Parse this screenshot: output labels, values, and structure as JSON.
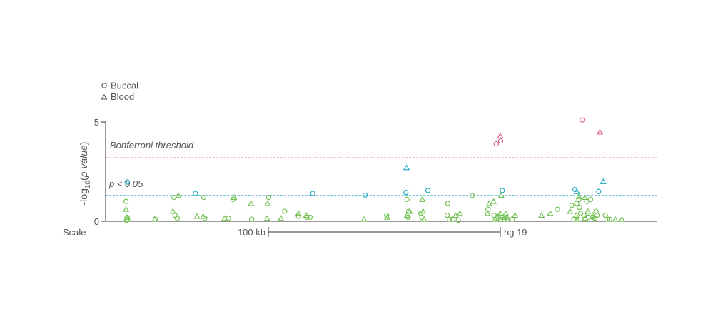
{
  "chart_data": {
    "type": "scatter",
    "title": "",
    "xlabel": "",
    "ylabel_parts": [
      "-log",
      "10",
      "(",
      "p value",
      ")"
    ],
    "ylim": [
      0,
      5
    ],
    "yticks": [
      "0",
      "5"
    ],
    "xlim": [
      0,
      100
    ],
    "grid": false,
    "legend_position": "top-left",
    "legend": [
      {
        "name": "Buccal",
        "marker": "circle"
      },
      {
        "name": "Blood",
        "marker": "triangle"
      }
    ],
    "thresholds": [
      {
        "label": "Bonferroni threshold",
        "y": 3.2,
        "color": "#d65a8c"
      },
      {
        "label_p": "p",
        "label_rest": " < 0.05",
        "y": 1.3,
        "color": "#1aa8c0"
      }
    ],
    "scale_bar": {
      "label": "Scale",
      "length_label": "100 kb",
      "genome_label": "hg 19"
    },
    "colors": {
      "green": "#6cbf4a",
      "blue": "#1aa8c0",
      "pink": "#d65a8c",
      "axis": "#333333",
      "text": "#555555"
    },
    "series": [
      {
        "name": "Buccal",
        "marker": "circle",
        "points": [
          {
            "x": 3.9,
            "y": 1.98,
            "c": "blue"
          },
          {
            "x": 3.7,
            "y": 1.0,
            "c": "green"
          },
          {
            "x": 3.9,
            "y": 0.2,
            "c": "green"
          },
          {
            "x": 4.0,
            "y": 0.1,
            "c": "green"
          },
          {
            "x": 3.8,
            "y": 0.05,
            "c": "green"
          },
          {
            "x": 9.0,
            "y": 0.1,
            "c": "green"
          },
          {
            "x": 12.4,
            "y": 1.2,
            "c": "green"
          },
          {
            "x": 12.6,
            "y": 0.3,
            "c": "green"
          },
          {
            "x": 13.0,
            "y": 0.15,
            "c": "green"
          },
          {
            "x": 16.3,
            "y": 1.4,
            "c": "blue"
          },
          {
            "x": 17.8,
            "y": 1.2,
            "c": "green"
          },
          {
            "x": 18.0,
            "y": 0.15,
            "c": "green"
          },
          {
            "x": 23.1,
            "y": 1.1,
            "c": "green"
          },
          {
            "x": 22.3,
            "y": 0.15,
            "c": "green"
          },
          {
            "x": 26.5,
            "y": 0.1,
            "c": "green"
          },
          {
            "x": 29.6,
            "y": 1.2,
            "c": "green"
          },
          {
            "x": 32.5,
            "y": 0.5,
            "c": "green"
          },
          {
            "x": 35.0,
            "y": 0.25,
            "c": "green"
          },
          {
            "x": 36.5,
            "y": 0.2,
            "c": "green"
          },
          {
            "x": 37.1,
            "y": 0.2,
            "c": "green"
          },
          {
            "x": 37.6,
            "y": 1.4,
            "c": "blue"
          },
          {
            "x": 47.1,
            "y": 1.32,
            "c": "blue"
          },
          {
            "x": 51.0,
            "y": 0.3,
            "c": "green"
          },
          {
            "x": 54.5,
            "y": 1.45,
            "c": "blue"
          },
          {
            "x": 54.7,
            "y": 1.1,
            "c": "green"
          },
          {
            "x": 55.0,
            "y": 0.5,
            "c": "green"
          },
          {
            "x": 54.9,
            "y": 0.2,
            "c": "green"
          },
          {
            "x": 57.2,
            "y": 0.4,
            "c": "green"
          },
          {
            "x": 57.4,
            "y": 0.2,
            "c": "green"
          },
          {
            "x": 58.5,
            "y": 1.55,
            "c": "blue"
          },
          {
            "x": 62.1,
            "y": 0.9,
            "c": "green"
          },
          {
            "x": 62.0,
            "y": 0.3,
            "c": "green"
          },
          {
            "x": 62.4,
            "y": 0.1,
            "c": "green"
          },
          {
            "x": 63.0,
            "y": 0.1,
            "c": "green"
          },
          {
            "x": 64.0,
            "y": 0.05,
            "c": "green"
          },
          {
            "x": 66.5,
            "y": 1.3,
            "c": "green"
          },
          {
            "x": 69.4,
            "y": 0.6,
            "c": "green"
          },
          {
            "x": 70.5,
            "y": 0.3,
            "c": "green"
          },
          {
            "x": 71.2,
            "y": 0.25,
            "c": "green"
          },
          {
            "x": 71.0,
            "y": 0.15,
            "c": "green"
          },
          {
            "x": 71.7,
            "y": 0.1,
            "c": "green"
          },
          {
            "x": 72.3,
            "y": 0.1,
            "c": "green"
          },
          {
            "x": 71.9,
            "y": 0.2,
            "c": "green"
          },
          {
            "x": 72.9,
            "y": 0.1,
            "c": "green"
          },
          {
            "x": 73.8,
            "y": 0.1,
            "c": "green"
          },
          {
            "x": 72.0,
            "y": 1.55,
            "c": "blue"
          },
          {
            "x": 70.9,
            "y": 3.9,
            "c": "pink"
          },
          {
            "x": 71.7,
            "y": 4.05,
            "c": "pink"
          },
          {
            "x": 82.0,
            "y": 0.6,
            "c": "green"
          },
          {
            "x": 84.6,
            "y": 0.8,
            "c": "green"
          },
          {
            "x": 86.2,
            "y": 0.4,
            "c": "green"
          },
          {
            "x": 86.8,
            "y": 0.3,
            "c": "green"
          },
          {
            "x": 87.6,
            "y": 0.2,
            "c": "green"
          },
          {
            "x": 89.0,
            "y": 0.5,
            "c": "green"
          },
          {
            "x": 89.2,
            "y": 0.3,
            "c": "green"
          },
          {
            "x": 91.0,
            "y": 0.1,
            "c": "green"
          },
          {
            "x": 91.5,
            "y": 0.1,
            "c": "green"
          },
          {
            "x": 86.0,
            "y": 0.7,
            "c": "green"
          },
          {
            "x": 85.9,
            "y": 1.1,
            "c": "green"
          },
          {
            "x": 85.5,
            "y": 0.9,
            "c": "green"
          },
          {
            "x": 87.3,
            "y": 1.0,
            "c": "green"
          },
          {
            "x": 88.0,
            "y": 1.1,
            "c": "green"
          },
          {
            "x": 88.4,
            "y": 0.2,
            "c": "green"
          },
          {
            "x": 85.0,
            "y": 0.1,
            "c": "green"
          },
          {
            "x": 85.2,
            "y": 1.6,
            "c": "blue"
          },
          {
            "x": 89.5,
            "y": 1.5,
            "c": "blue"
          },
          {
            "x": 90.7,
            "y": 0.3,
            "c": "green"
          },
          {
            "x": 86.5,
            "y": 5.1,
            "c": "pink"
          },
          {
            "x": 88.8,
            "y": 0.15,
            "c": "green"
          }
        ]
      },
      {
        "name": "Blood",
        "marker": "triangle",
        "points": [
          {
            "x": 3.7,
            "y": 0.6,
            "c": "green"
          },
          {
            "x": 3.9,
            "y": 0.1,
            "c": "green"
          },
          {
            "x": 8.9,
            "y": 0.1,
            "c": "green"
          },
          {
            "x": 12.2,
            "y": 0.5,
            "c": "green"
          },
          {
            "x": 13.2,
            "y": 1.3,
            "c": "green"
          },
          {
            "x": 16.6,
            "y": 0.25,
            "c": "green"
          },
          {
            "x": 17.7,
            "y": 0.25,
            "c": "green"
          },
          {
            "x": 21.6,
            "y": 0.15,
            "c": "green"
          },
          {
            "x": 23.3,
            "y": 1.2,
            "c": "green"
          },
          {
            "x": 26.4,
            "y": 0.9,
            "c": "green"
          },
          {
            "x": 29.3,
            "y": 0.15,
            "c": "green"
          },
          {
            "x": 29.4,
            "y": 0.9,
            "c": "green"
          },
          {
            "x": 31.8,
            "y": 0.15,
            "c": "green"
          },
          {
            "x": 35.0,
            "y": 0.4,
            "c": "green"
          },
          {
            "x": 36.4,
            "y": 0.3,
            "c": "green"
          },
          {
            "x": 46.9,
            "y": 0.1,
            "c": "green"
          },
          {
            "x": 51.1,
            "y": 0.2,
            "c": "green"
          },
          {
            "x": 54.6,
            "y": 2.7,
            "c": "blue"
          },
          {
            "x": 54.7,
            "y": 0.3,
            "c": "green"
          },
          {
            "x": 55.2,
            "y": 0.5,
            "c": "green"
          },
          {
            "x": 57.5,
            "y": 1.1,
            "c": "green"
          },
          {
            "x": 57.6,
            "y": 0.5,
            "c": "green"
          },
          {
            "x": 57.8,
            "y": 0.1,
            "c": "green"
          },
          {
            "x": 63.5,
            "y": 0.3,
            "c": "green"
          },
          {
            "x": 64.3,
            "y": 0.4,
            "c": "green"
          },
          {
            "x": 69.6,
            "y": 0.9,
            "c": "green"
          },
          {
            "x": 70.4,
            "y": 1.0,
            "c": "green"
          },
          {
            "x": 71.8,
            "y": 1.3,
            "c": "green"
          },
          {
            "x": 69.3,
            "y": 0.4,
            "c": "green"
          },
          {
            "x": 70.7,
            "y": 0.1,
            "c": "green"
          },
          {
            "x": 71.6,
            "y": 0.4,
            "c": "green"
          },
          {
            "x": 72.6,
            "y": 0.4,
            "c": "green"
          },
          {
            "x": 74.3,
            "y": 0.3,
            "c": "green"
          },
          {
            "x": 72.8,
            "y": 0.2,
            "c": "green"
          },
          {
            "x": 71.6,
            "y": 4.3,
            "c": "pink"
          },
          {
            "x": 79.1,
            "y": 0.3,
            "c": "green"
          },
          {
            "x": 80.7,
            "y": 0.4,
            "c": "green"
          },
          {
            "x": 84.3,
            "y": 0.5,
            "c": "green"
          },
          {
            "x": 85.4,
            "y": 0.3,
            "c": "green"
          },
          {
            "x": 85.5,
            "y": 0.1,
            "c": "green"
          },
          {
            "x": 87.0,
            "y": 0.15,
            "c": "green"
          },
          {
            "x": 88.4,
            "y": 0.3,
            "c": "green"
          },
          {
            "x": 85.9,
            "y": 1.25,
            "c": "green"
          },
          {
            "x": 85.5,
            "y": 1.5,
            "c": "blue"
          },
          {
            "x": 87.0,
            "y": 1.2,
            "c": "green"
          },
          {
            "x": 87.5,
            "y": 0.5,
            "c": "green"
          },
          {
            "x": 89.7,
            "y": 4.5,
            "c": "pink"
          },
          {
            "x": 90.3,
            "y": 2.0,
            "c": "blue"
          },
          {
            "x": 92.5,
            "y": 0.1,
            "c": "green"
          },
          {
            "x": 93.7,
            "y": 0.1,
            "c": "green"
          }
        ]
      }
    ]
  }
}
